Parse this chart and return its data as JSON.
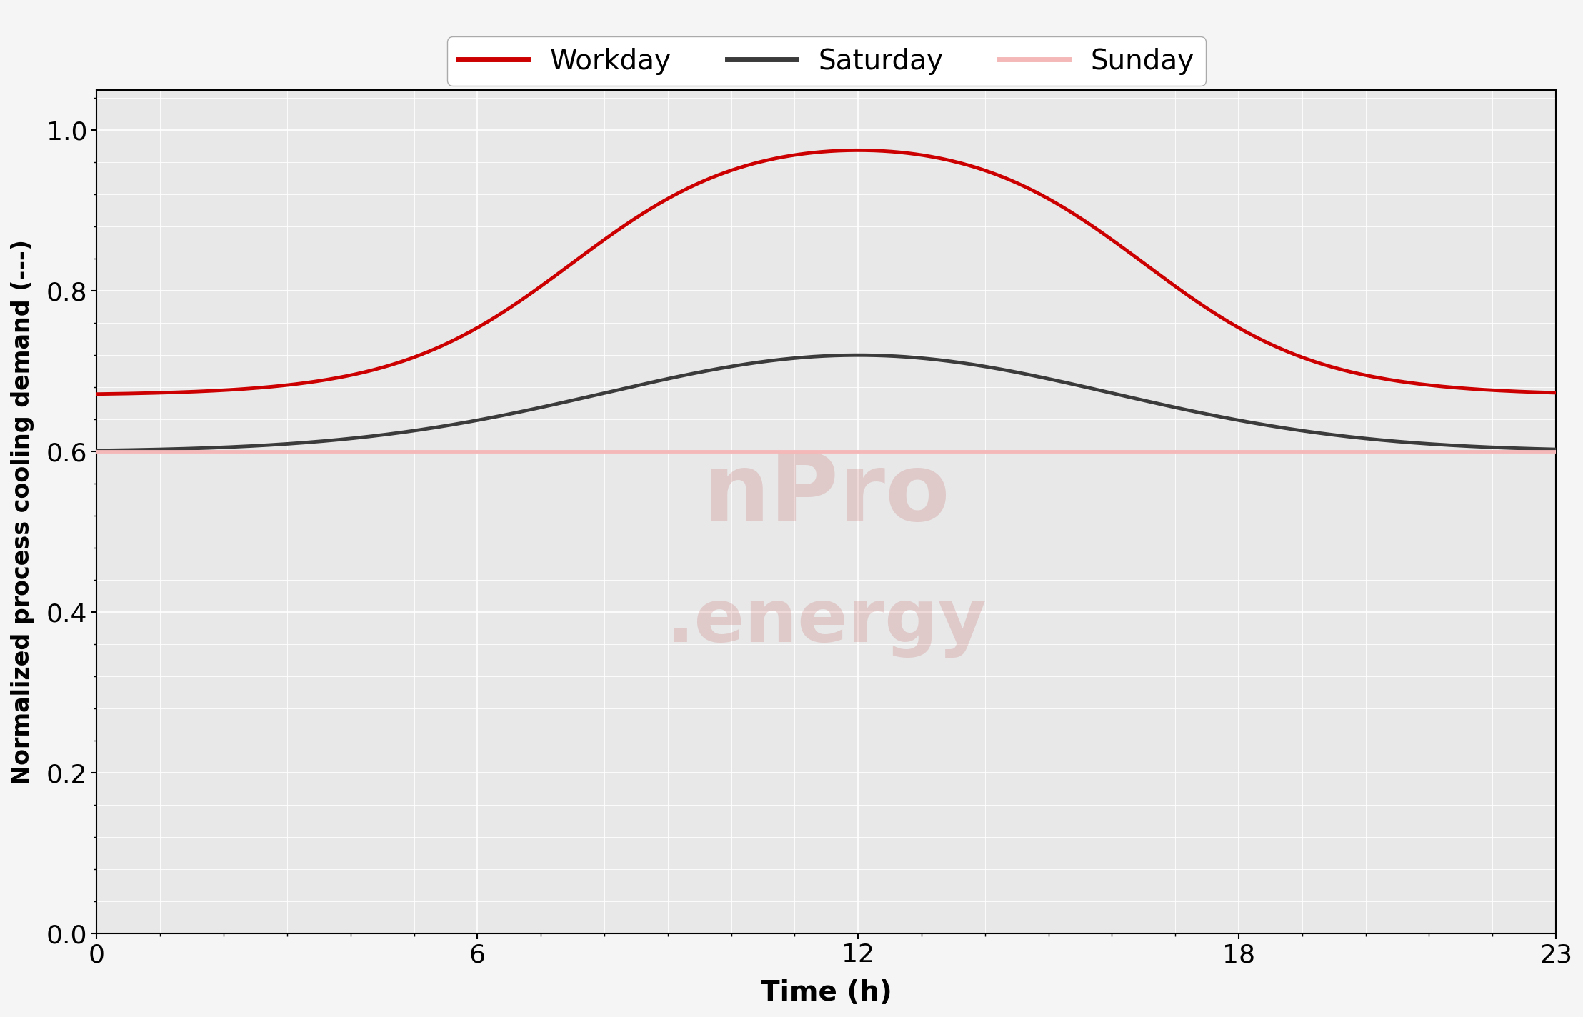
{
  "title": "",
  "xlabel": "Time (h)",
  "ylabel": "Normalized process cooling demand (---)",
  "xlim": [
    0,
    23
  ],
  "ylim": [
    0.0,
    1.05
  ],
  "yticks": [
    0.0,
    0.2,
    0.4,
    0.6,
    0.8,
    1.0
  ],
  "xticks": [
    0,
    6,
    12,
    18,
    23
  ],
  "workday_color": "#cc0000",
  "saturday_color": "#3b3b3b",
  "sunday_color": "#f4b8b8",
  "line_width": 3.5,
  "legend_labels": [
    "Workday",
    "Saturday",
    "Sunday"
  ],
  "background_color": "#e8e8e8",
  "grid_color": "#ffffff",
  "watermark_text1": "nPro",
  "watermark_text2": ".energy",
  "watermark_color": "#b01c1c"
}
